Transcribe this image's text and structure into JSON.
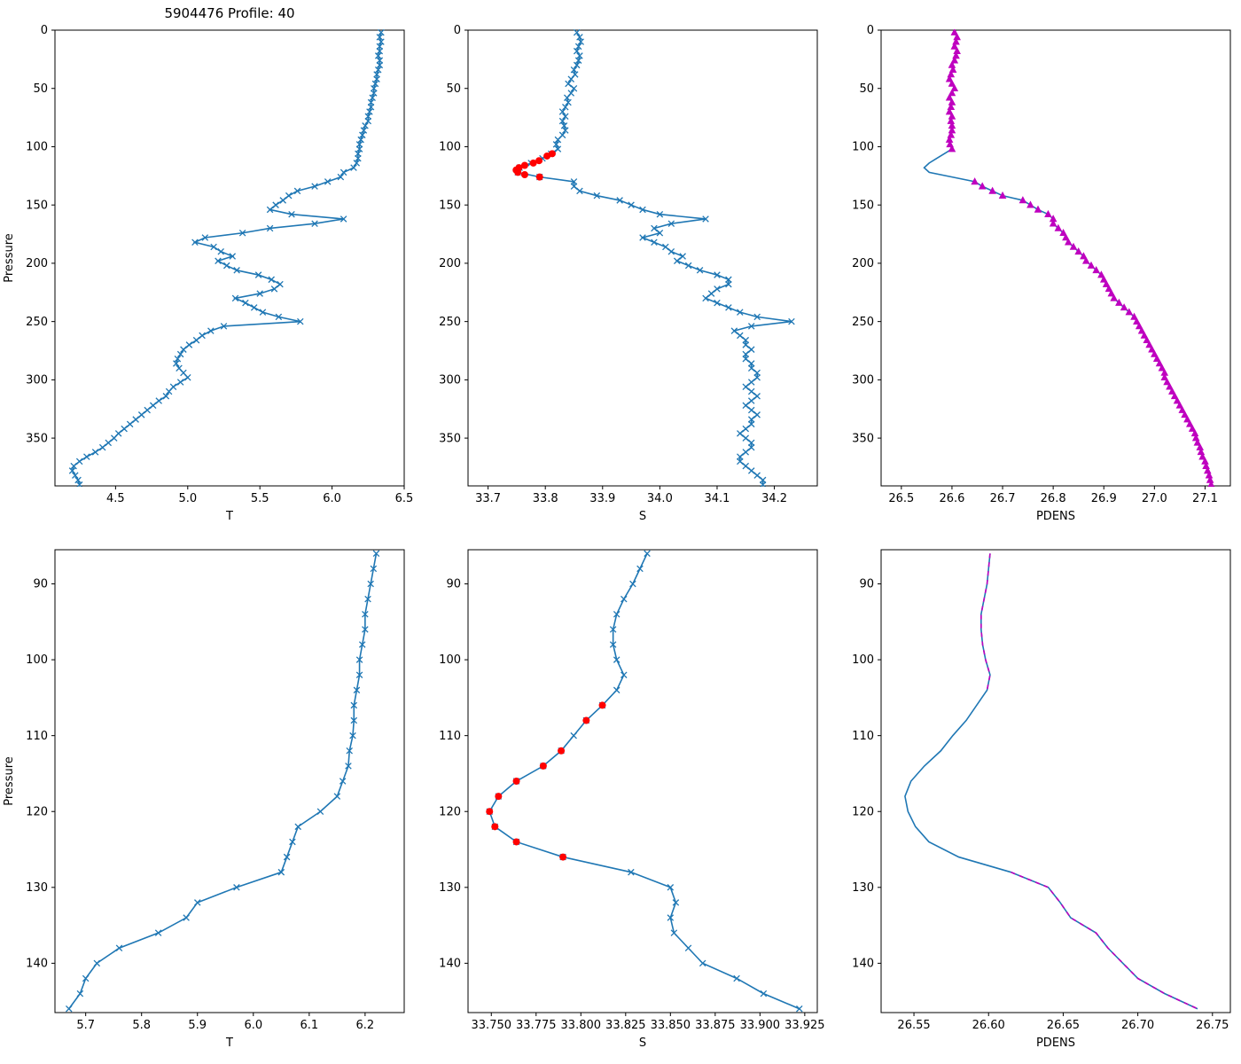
{
  "figure": {
    "background": "#ffffff",
    "colors": {
      "profile_blue": "#1f77b4",
      "flag_red": "#ff0000",
      "pdens_magenta": "#bf00bf"
    }
  },
  "chart_data": [
    {
      "type": "line",
      "title": "5904476 Profile: 40",
      "xlabel": "T",
      "ylabel": "Pressure",
      "xlim": [
        4.08,
        6.5
      ],
      "ylim": [
        0,
        391
      ],
      "xticks": [
        4.5,
        5.0,
        5.5,
        6.0,
        6.5
      ],
      "xtick_labels": [
        "4.5",
        "5.0",
        "5.5",
        "6.0",
        "6.5"
      ],
      "yticks": [
        0,
        50,
        100,
        150,
        200,
        250,
        300,
        350
      ],
      "ytick_labels": [
        "0",
        "50",
        "100",
        "150",
        "200",
        "250",
        "300",
        "350"
      ],
      "p": [
        2,
        6,
        10,
        14,
        18,
        22,
        26,
        30,
        34,
        38,
        42,
        46,
        50,
        54,
        58,
        62,
        66,
        70,
        74,
        78,
        82,
        86,
        90,
        94,
        98,
        102,
        106,
        110,
        114,
        118,
        122,
        126,
        130,
        134,
        138,
        142,
        146,
        150,
        154,
        158,
        162,
        166,
        170,
        174,
        178,
        182,
        186,
        190,
        194,
        198,
        202,
        206,
        210,
        214,
        218,
        222,
        226,
        230,
        234,
        238,
        242,
        246,
        250,
        254,
        258,
        262,
        266,
        270,
        274,
        278,
        282,
        286,
        290,
        294,
        298,
        302,
        306,
        310,
        314,
        318,
        322,
        326,
        330,
        334,
        338,
        342,
        346,
        350,
        354,
        358,
        362,
        366,
        370,
        374,
        378,
        382,
        386,
        390
      ],
      "series": [
        {
          "name": "temperature-profile",
          "color": "#1f77b4",
          "marker": "x",
          "line": true,
          "x": [
            6.34,
            6.33,
            6.34,
            6.33,
            6.33,
            6.32,
            6.33,
            6.33,
            6.32,
            6.31,
            6.31,
            6.3,
            6.29,
            6.29,
            6.28,
            6.27,
            6.27,
            6.26,
            6.25,
            6.25,
            6.23,
            6.22,
            6.21,
            6.2,
            6.19,
            6.19,
            6.18,
            6.18,
            6.17,
            6.15,
            6.08,
            6.06,
            5.97,
            5.88,
            5.76,
            5.7,
            5.66,
            5.61,
            5.57,
            5.72,
            6.08,
            5.88,
            5.57,
            5.38,
            5.12,
            5.05,
            5.18,
            5.23,
            5.31,
            5.21,
            5.27,
            5.34,
            5.49,
            5.58,
            5.64,
            5.6,
            5.5,
            5.33,
            5.4,
            5.46,
            5.52,
            5.63,
            5.78,
            5.25,
            5.16,
            5.1,
            5.06,
            5.01,
            4.97,
            4.95,
            4.93,
            4.92,
            4.94,
            4.97,
            5.0,
            4.95,
            4.9,
            4.87,
            4.85,
            4.8,
            4.76,
            4.72,
            4.68,
            4.64,
            4.6,
            4.56,
            4.52,
            4.49,
            4.45,
            4.41,
            4.36,
            4.3,
            4.25,
            4.21,
            4.2,
            4.22,
            4.24,
            4.25
          ]
        }
      ]
    },
    {
      "type": "line",
      "title": "",
      "xlabel": "S",
      "ylabel": "",
      "xlim": [
        33.665,
        34.275
      ],
      "ylim": [
        0,
        391
      ],
      "xticks": [
        33.7,
        33.8,
        33.9,
        34.0,
        34.1,
        34.2
      ],
      "xtick_labels": [
        "33.7",
        "33.8",
        "33.9",
        "34.0",
        "34.1",
        "34.2"
      ],
      "yticks": [
        0,
        50,
        100,
        150,
        200,
        250,
        300,
        350
      ],
      "ytick_labels": [
        "0",
        "50",
        "100",
        "150",
        "200",
        "250",
        "300",
        "350"
      ],
      "p": [
        2,
        6,
        10,
        14,
        18,
        22,
        26,
        30,
        34,
        38,
        42,
        46,
        50,
        54,
        58,
        62,
        66,
        70,
        74,
        78,
        82,
        86,
        90,
        94,
        98,
        102,
        106,
        110,
        114,
        118,
        122,
        126,
        130,
        134,
        138,
        142,
        146,
        150,
        154,
        158,
        162,
        166,
        170,
        174,
        178,
        182,
        186,
        190,
        194,
        198,
        202,
        206,
        210,
        214,
        218,
        222,
        226,
        230,
        234,
        238,
        242,
        246,
        250,
        254,
        258,
        262,
        266,
        270,
        274,
        278,
        282,
        286,
        290,
        294,
        298,
        302,
        306,
        310,
        314,
        318,
        322,
        326,
        330,
        334,
        338,
        342,
        346,
        350,
        354,
        358,
        362,
        366,
        370,
        374,
        378,
        382,
        386,
        390
      ],
      "series": [
        {
          "name": "salinity-profile",
          "color": "#1f77b4",
          "marker": "x",
          "line": true,
          "x": [
            33.855,
            33.86,
            33.862,
            33.858,
            33.855,
            33.86,
            33.858,
            33.855,
            33.85,
            33.852,
            33.845,
            33.84,
            33.85,
            33.845,
            33.838,
            33.84,
            33.835,
            33.83,
            33.835,
            33.83,
            33.833,
            33.835,
            33.83,
            33.822,
            33.819,
            33.822,
            33.81,
            33.795,
            33.775,
            33.755,
            33.752,
            33.79,
            33.85,
            33.85,
            33.86,
            33.89,
            33.93,
            33.95,
            33.97,
            34.0,
            34.08,
            34.02,
            33.99,
            34.0,
            33.97,
            33.99,
            34.01,
            34.02,
            34.04,
            34.03,
            34.05,
            34.07,
            34.1,
            34.12,
            34.12,
            34.1,
            34.09,
            34.08,
            34.1,
            34.12,
            34.14,
            34.17,
            34.23,
            34.16,
            34.13,
            34.14,
            34.15,
            34.15,
            34.16,
            34.15,
            34.15,
            34.16,
            34.16,
            34.17,
            34.17,
            34.16,
            34.15,
            34.16,
            34.17,
            34.16,
            34.15,
            34.16,
            34.17,
            34.16,
            34.16,
            34.15,
            34.14,
            34.15,
            34.16,
            34.16,
            34.15,
            34.14,
            34.14,
            34.15,
            34.16,
            34.17,
            34.18,
            34.18
          ]
        },
        {
          "name": "flagged-salinity-points",
          "color": "#ff0000",
          "marker": "circle",
          "line": false,
          "x": [
            33.812,
            33.803,
            33.789,
            33.779,
            33.764,
            33.754,
            33.749,
            33.752,
            33.764,
            33.79
          ],
          "p": [
            106,
            108,
            112,
            114,
            116,
            118,
            120,
            122,
            124,
            126
          ]
        }
      ]
    },
    {
      "type": "line",
      "title": "",
      "xlabel": "PDENS",
      "ylabel": "",
      "xlim": [
        26.46,
        27.15
      ],
      "ylim": [
        0,
        391
      ],
      "xticks": [
        26.5,
        26.6,
        26.7,
        26.8,
        26.9,
        27.0,
        27.1
      ],
      "xtick_labels": [
        "26.5",
        "26.6",
        "26.7",
        "26.8",
        "26.9",
        "27.0",
        "27.1"
      ],
      "yticks": [
        0,
        50,
        100,
        150,
        200,
        250,
        300,
        350
      ],
      "ytick_labels": [
        "0",
        "50",
        "100",
        "150",
        "200",
        "250",
        "300",
        "350"
      ],
      "p": [
        2,
        6,
        10,
        14,
        18,
        22,
        26,
        30,
        34,
        38,
        42,
        46,
        50,
        54,
        58,
        62,
        66,
        70,
        74,
        78,
        82,
        86,
        90,
        94,
        98,
        102,
        106,
        110,
        114,
        118,
        122,
        126,
        130,
        134,
        138,
        142,
        146,
        150,
        154,
        158,
        162,
        166,
        170,
        174,
        178,
        182,
        186,
        190,
        194,
        198,
        202,
        206,
        210,
        214,
        218,
        222,
        226,
        230,
        234,
        238,
        242,
        246,
        250,
        254,
        258,
        262,
        266,
        270,
        274,
        278,
        282,
        286,
        290,
        294,
        298,
        302,
        306,
        310,
        314,
        318,
        322,
        326,
        330,
        334,
        338,
        342,
        346,
        350,
        354,
        358,
        362,
        366,
        370,
        374,
        378,
        382,
        386,
        390
      ],
      "series": [
        {
          "name": "pdens-line",
          "color": "#1f77b4",
          "marker": "none",
          "line": true,
          "x": [
            26.605,
            26.61,
            26.608,
            26.605,
            26.61,
            26.608,
            26.605,
            26.6,
            26.602,
            26.598,
            26.595,
            26.6,
            26.605,
            26.6,
            26.595,
            26.6,
            26.598,
            26.595,
            26.6,
            26.598,
            26.6,
            26.6,
            26.598,
            26.595,
            26.596,
            26.6,
            26.585,
            26.57,
            26.555,
            26.545,
            26.555,
            26.6,
            26.645,
            26.66,
            26.68,
            26.7,
            26.74,
            26.755,
            26.77,
            26.79,
            26.8,
            26.8,
            26.81,
            26.82,
            26.825,
            26.83,
            26.84,
            26.85,
            26.86,
            26.865,
            26.875,
            26.885,
            26.895,
            26.9,
            26.905,
            26.91,
            26.915,
            26.92,
            26.93,
            26.94,
            26.95,
            26.96,
            26.965,
            26.97,
            26.975,
            26.98,
            26.985,
            26.99,
            26.995,
            27.0,
            27.005,
            27.01,
            27.015,
            27.02,
            27.02,
            27.025,
            27.03,
            27.035,
            27.04,
            27.045,
            27.05,
            27.055,
            27.06,
            27.065,
            27.07,
            27.075,
            27.08,
            27.082,
            27.085,
            27.09,
            27.092,
            27.095,
            27.1,
            27.102,
            27.105,
            27.108,
            27.11,
            27.112
          ]
        },
        {
          "name": "pdens-accepted-points",
          "color": "#bf00bf",
          "marker": "triangle",
          "line": false,
          "use": "parent",
          "p_ranges": [
            [
              0,
              102
            ],
            [
              128,
              392
            ]
          ]
        }
      ]
    },
    {
      "type": "line",
      "title": "",
      "xlabel": "T",
      "ylabel": "Pressure",
      "xlim": [
        5.645,
        6.27
      ],
      "ylim": [
        85.5,
        146.5
      ],
      "xticks": [
        5.7,
        5.8,
        5.9,
        6.0,
        6.1,
        6.2
      ],
      "xtick_labels": [
        "5.7",
        "5.8",
        "5.9",
        "6.0",
        "6.1",
        "6.2"
      ],
      "yticks": [
        90,
        100,
        110,
        120,
        130,
        140
      ],
      "ytick_labels": [
        "90",
        "100",
        "110",
        "120",
        "130",
        "140"
      ],
      "p": [
        86,
        88,
        90,
        92,
        94,
        96,
        98,
        100,
        102,
        104,
        106,
        108,
        110,
        112,
        114,
        116,
        118,
        120,
        122,
        124,
        126,
        128,
        130,
        132,
        134,
        136,
        138,
        140,
        142,
        144,
        146
      ],
      "series": [
        {
          "name": "temperature-profile-zoom",
          "color": "#1f77b4",
          "marker": "x",
          "line": true,
          "x": [
            6.22,
            6.215,
            6.21,
            6.205,
            6.2,
            6.2,
            6.195,
            6.19,
            6.19,
            6.185,
            6.18,
            6.18,
            6.178,
            6.172,
            6.17,
            6.16,
            6.15,
            6.12,
            6.08,
            6.07,
            6.06,
            6.05,
            5.97,
            5.9,
            5.88,
            5.83,
            5.76,
            5.72,
            5.7,
            5.69,
            5.67
          ]
        }
      ]
    },
    {
      "type": "line",
      "title": "",
      "xlabel": "S",
      "ylabel": "",
      "xlim": [
        33.737,
        33.932
      ],
      "ylim": [
        85.5,
        146.5
      ],
      "xticks": [
        33.75,
        33.775,
        33.8,
        33.825,
        33.85,
        33.875,
        33.9,
        33.925
      ],
      "xtick_labels": [
        "33.750",
        "33.775",
        "33.800",
        "33.825",
        "33.850",
        "33.875",
        "33.900",
        "33.925"
      ],
      "yticks": [
        90,
        100,
        110,
        120,
        130,
        140
      ],
      "ytick_labels": [
        "90",
        "100",
        "110",
        "120",
        "130",
        "140"
      ],
      "p": [
        86,
        88,
        90,
        92,
        94,
        96,
        98,
        100,
        102,
        104,
        106,
        108,
        110,
        112,
        114,
        116,
        118,
        120,
        122,
        124,
        126,
        128,
        130,
        132,
        134,
        136,
        138,
        140,
        142,
        144,
        146
      ],
      "series": [
        {
          "name": "salinity-profile-zoom",
          "color": "#1f77b4",
          "marker": "x",
          "line": true,
          "x": [
            33.837,
            33.833,
            33.829,
            33.824,
            33.82,
            33.818,
            33.818,
            33.82,
            33.824,
            33.82,
            33.812,
            33.803,
            33.796,
            33.789,
            33.779,
            33.764,
            33.754,
            33.749,
            33.752,
            33.764,
            33.79,
            33.828,
            33.85,
            33.853,
            33.85,
            33.852,
            33.86,
            33.868,
            33.887,
            33.902,
            33.922
          ]
        },
        {
          "name": "flagged-salinity-points-zoom",
          "color": "#ff0000",
          "marker": "circle",
          "line": false,
          "x": [
            33.812,
            33.803,
            33.789,
            33.779,
            33.764,
            33.754,
            33.749,
            33.752,
            33.764,
            33.79
          ],
          "p": [
            106,
            108,
            112,
            114,
            116,
            118,
            120,
            122,
            124,
            126
          ]
        }
      ]
    },
    {
      "type": "line",
      "title": "",
      "xlabel": "PDENS",
      "ylabel": "",
      "xlim": [
        26.528,
        26.762
      ],
      "ylim": [
        85.5,
        146.5
      ],
      "xticks": [
        26.55,
        26.6,
        26.65,
        26.7,
        26.75
      ],
      "xtick_labels": [
        "26.55",
        "26.60",
        "26.65",
        "26.70",
        "26.75"
      ],
      "yticks": [
        90,
        100,
        110,
        120,
        130,
        140
      ],
      "ytick_labels": [
        "90",
        "100",
        "110",
        "120",
        "130",
        "140"
      ],
      "p": [
        86,
        88,
        90,
        92,
        94,
        96,
        98,
        100,
        102,
        104,
        106,
        108,
        110,
        112,
        114,
        116,
        118,
        120,
        122,
        124,
        126,
        128,
        130,
        132,
        134,
        136,
        138,
        140,
        142,
        144,
        146
      ],
      "series": [
        {
          "name": "pdens-line-zoom",
          "color": "#1f77b4",
          "marker": "none",
          "line": true,
          "x": [
            26.601,
            26.6,
            26.599,
            26.597,
            26.595,
            26.595,
            26.596,
            26.598,
            26.601,
            26.599,
            26.592,
            26.585,
            26.576,
            26.568,
            26.557,
            26.548,
            26.544,
            26.546,
            26.551,
            26.56,
            26.58,
            26.615,
            26.64,
            26.648,
            26.655,
            26.672,
            26.68,
            26.69,
            26.7,
            26.718,
            26.74
          ]
        },
        {
          "name": "pdens-accepted-dashed-zoom",
          "color": "#bf00bf",
          "marker": "none",
          "line": true,
          "dash": true,
          "use": "parent",
          "p_ranges": [
            [
              84,
              104
            ],
            [
              128,
              146
            ]
          ]
        }
      ]
    }
  ]
}
